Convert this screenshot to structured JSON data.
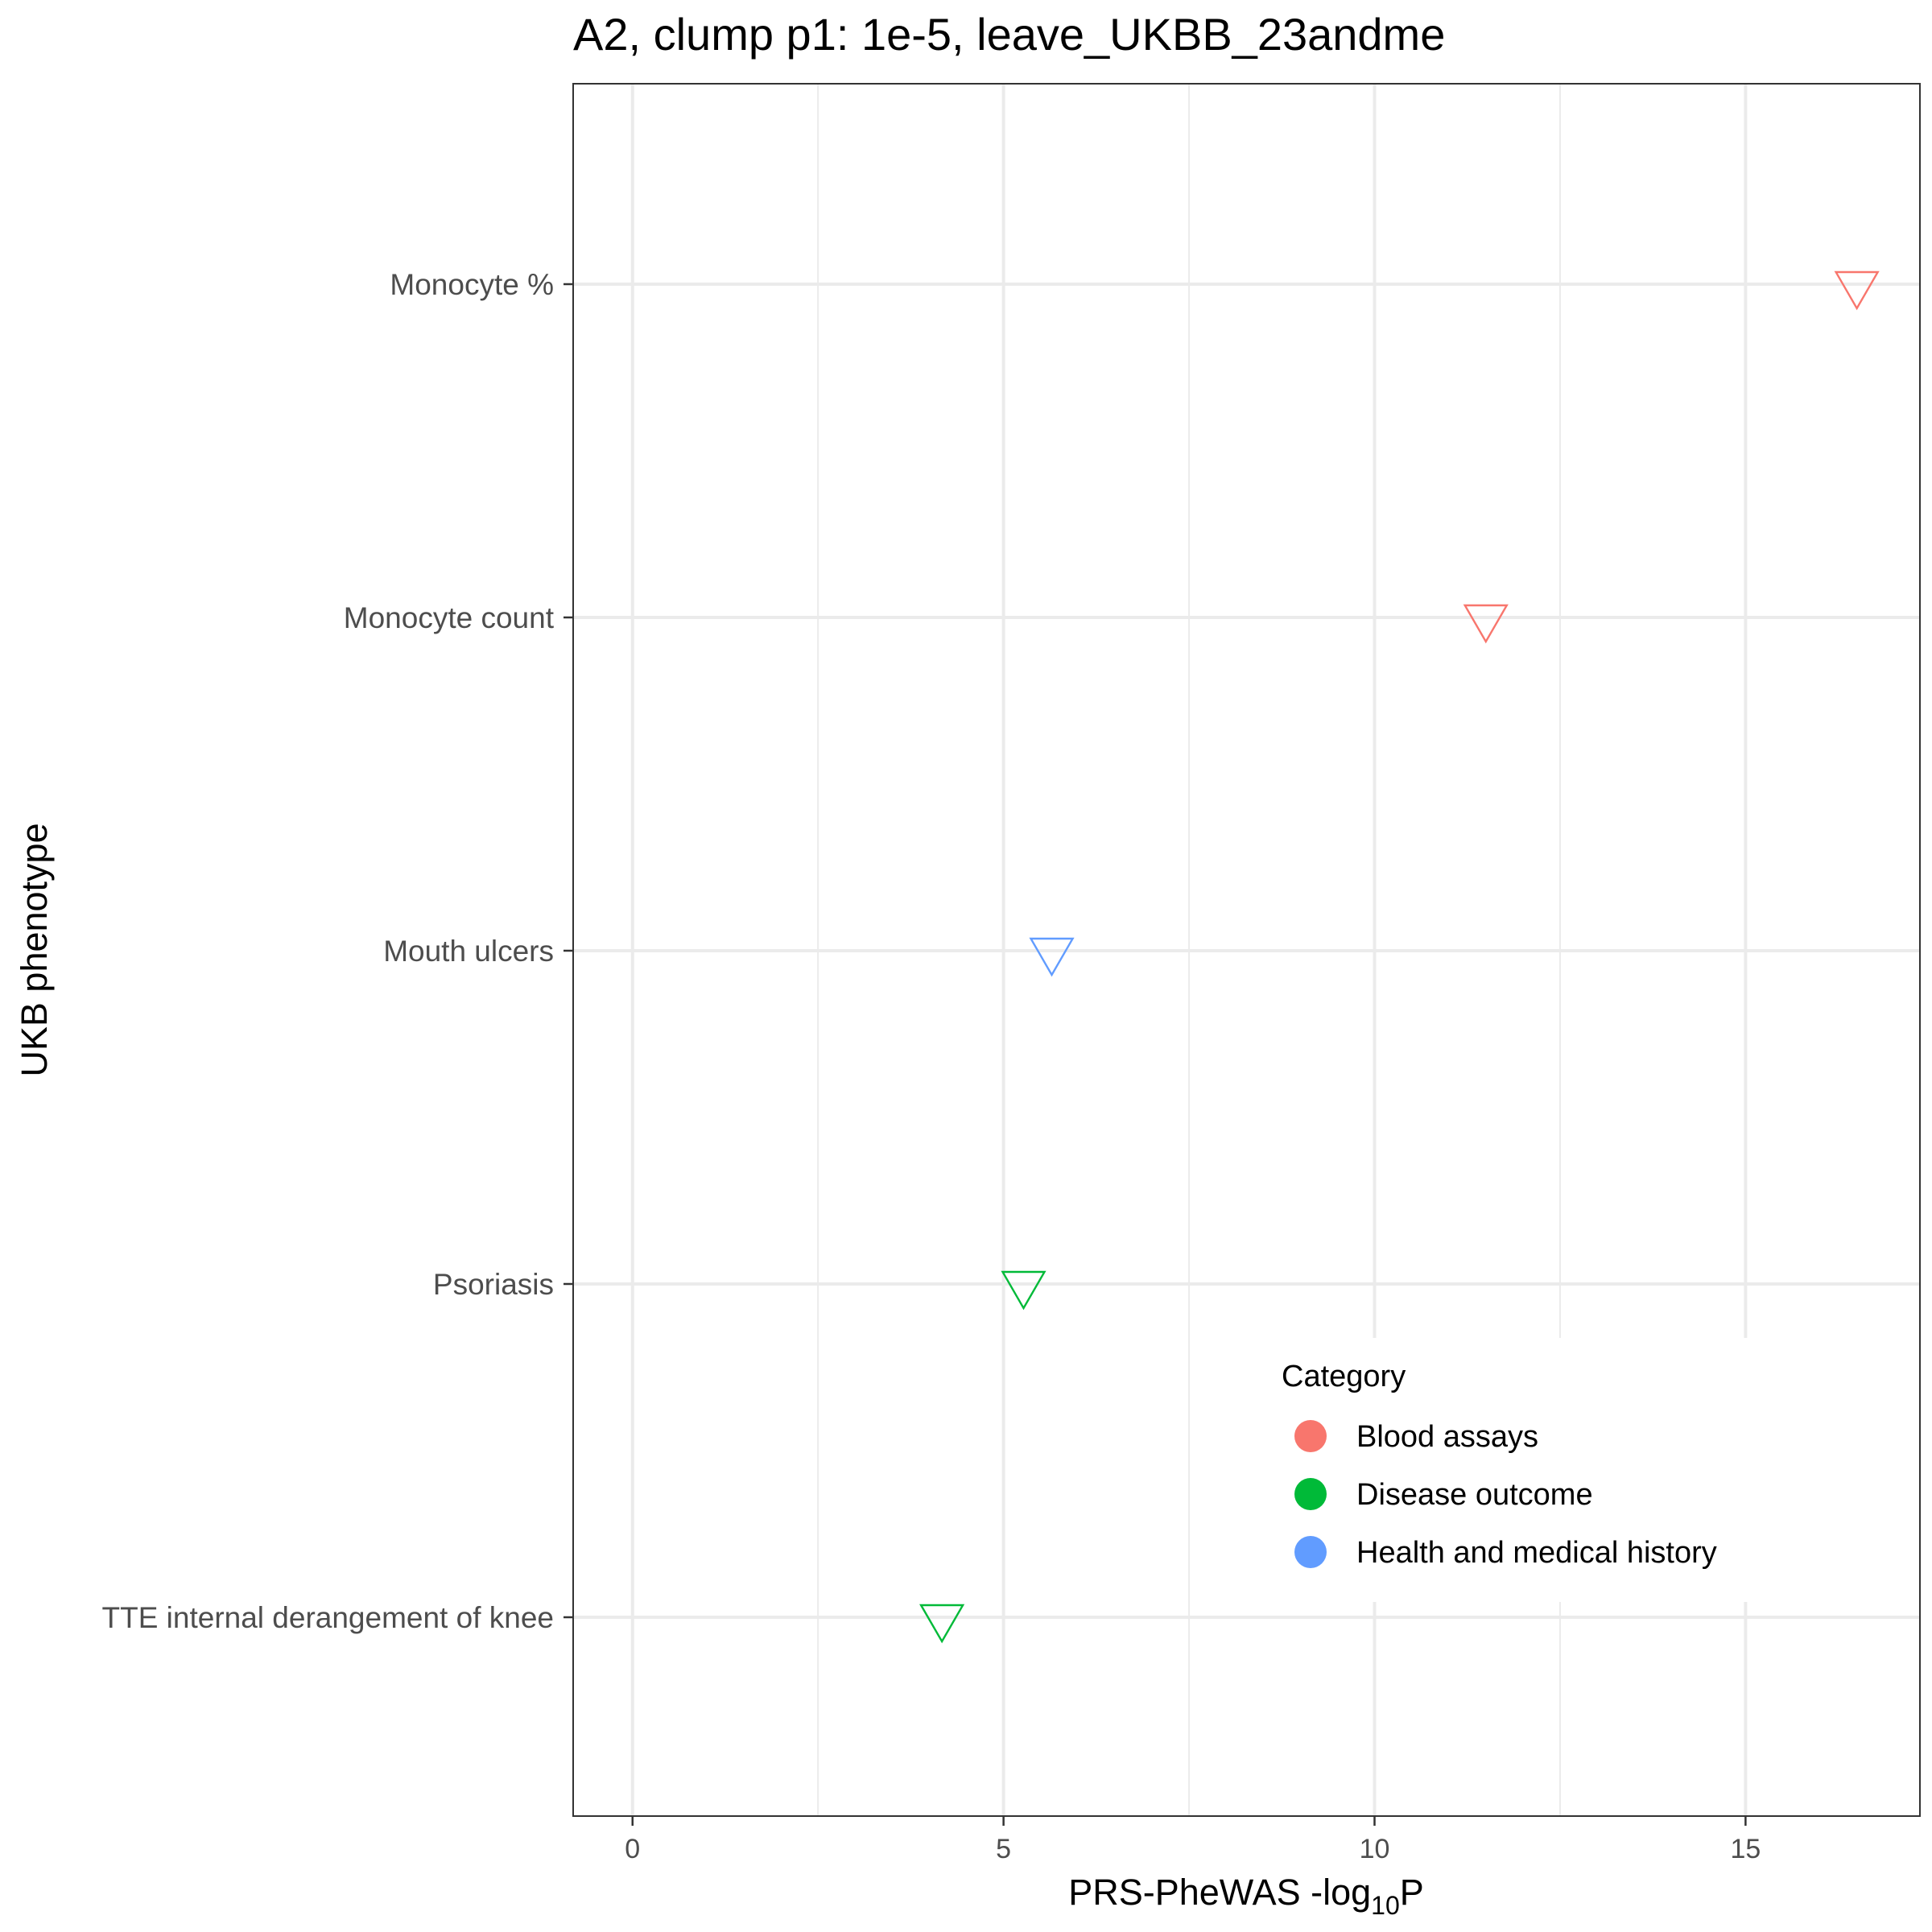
{
  "chart_data": {
    "type": "scatter",
    "title": "A2, clump p1: 1e-5, leave_UKBB_23andme",
    "xlabel": {
      "prefix": "PRS-PheWAS -log",
      "subscript": "10",
      "suffix": "P"
    },
    "ylabel": "UKB phenotype",
    "xlim": [
      -0.8,
      17.35
    ],
    "x_ticks": [
      0,
      5,
      10,
      15
    ],
    "x_tick_labels": [
      "0",
      "5",
      "10",
      "15"
    ],
    "x_minor_ticks": [
      2.5,
      7.5,
      12.5
    ],
    "categories": [
      "Monocyte %",
      "Monocyte count",
      "Mouth ulcers",
      "Psoriasis",
      "TTE internal derangement of knee"
    ],
    "grid": true,
    "marker": "open-down-triangle",
    "legend_position": "bottom-right inside",
    "legend": {
      "title": "Category",
      "entries": [
        {
          "name": "Blood assays",
          "color": "#F8766D"
        },
        {
          "name": "Disease outcome",
          "color": "#00BA38"
        },
        {
          "name": "Health and medical history",
          "color": "#619CFF"
        }
      ]
    },
    "points": [
      {
        "phenotype": "Monocyte %",
        "x": 16.5,
        "category": "Blood assays"
      },
      {
        "phenotype": "Monocyte count",
        "x": 11.5,
        "category": "Blood assays"
      },
      {
        "phenotype": "Mouth ulcers",
        "x": 5.65,
        "category": "Health and medical history"
      },
      {
        "phenotype": "Psoriasis",
        "x": 5.27,
        "category": "Disease outcome"
      },
      {
        "phenotype": "TTE internal derangement of knee",
        "x": 4.17,
        "category": "Disease outcome"
      }
    ]
  }
}
